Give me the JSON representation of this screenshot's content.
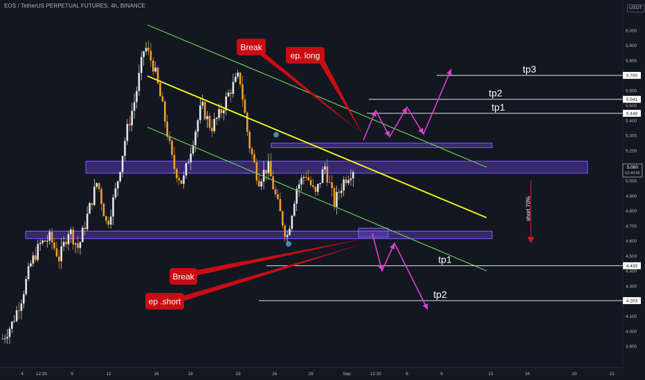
{
  "header": {
    "symbol_title": "EOS / TetherUS PERPETUAL FUTURES, 4h, BINANCE",
    "currency": "USDT"
  },
  "colors": {
    "background": "#131722",
    "axis_text": "#b2b5be",
    "zone_fill": "rgba(115,70,230,0.38)",
    "zone_stroke": "#7b61ff",
    "channel_green": "#6ccf4e",
    "midline_yellow": "#f3f315",
    "arrow_magenta": "#e040d0",
    "callout_red": "#c90d12",
    "candle_up": "#e8e8e8",
    "candle_down": "#f0a030"
  },
  "chart_data": {
    "type": "candlestick",
    "ylim": [
      3.85,
      6.1
    ],
    "y_ticks": [
      "6.000",
      "5.900",
      "5.800",
      "5.700",
      "5.600",
      "5.500",
      "5.400",
      "5.300",
      "5.200",
      "5.100",
      "5.000",
      "4.900",
      "4.800",
      "4.700",
      "4.600",
      "4.500",
      "4.400",
      "4.300",
      "4.200",
      "4.100",
      "4.000",
      "3.900"
    ],
    "x_ticks": [
      "4",
      "12:30",
      "9",
      "12",
      "16",
      "19",
      "23",
      "26",
      "29",
      "Sep",
      "12:30",
      "6",
      "9",
      "13",
      "16",
      "20",
      "23"
    ],
    "price_badges": [
      {
        "label": "5.700",
        "value": 5.7
      },
      {
        "label": "5.541",
        "value": 5.541
      },
      {
        "label": "5.448",
        "value": 5.448
      },
      {
        "label": "4.435",
        "value": 4.435
      },
      {
        "label": "4.203",
        "value": 4.203
      }
    ],
    "current_price": {
      "label": "5.080",
      "countdown": "02:40:55",
      "value": 5.08
    },
    "price_path": [
      3.95,
      4.05,
      4.22,
      4.45,
      4.58,
      4.62,
      4.48,
      4.68,
      4.55,
      4.78,
      5.0,
      4.7,
      4.95,
      5.3,
      5.55,
      5.9,
      5.75,
      5.45,
      5.1,
      4.98,
      5.25,
      5.5,
      5.35,
      5.45,
      5.6,
      5.7,
      5.25,
      5.0,
      5.1,
      4.85,
      4.62,
      4.95,
      5.05,
      4.9,
      5.1,
      4.85,
      5.0,
      5.08
    ],
    "zones": [
      {
        "name": "upper-small-zone",
        "y_from": 5.22,
        "y_to": 5.25
      },
      {
        "name": "middle-resistance-zone",
        "y_from": 5.05,
        "y_to": 5.13
      },
      {
        "name": "lower-support-zone",
        "y_from": 4.615,
        "y_to": 4.665
      },
      {
        "name": "short-entry-box",
        "y_from": 4.625,
        "y_to": 4.685
      }
    ],
    "target_lines": [
      {
        "label": "tp3",
        "value": 5.7
      },
      {
        "label": "tp2",
        "value": 5.541
      },
      {
        "label": "tp1",
        "value": 5.448
      },
      {
        "label": "tp1",
        "value": 4.435
      },
      {
        "label": "tp2",
        "value": 4.203
      }
    ],
    "annotations": {
      "break_top": "Break",
      "entry_long": "ep. long",
      "break_bottom": "Break",
      "entry_short": "ep .short",
      "short_percent": "short 70%"
    }
  }
}
